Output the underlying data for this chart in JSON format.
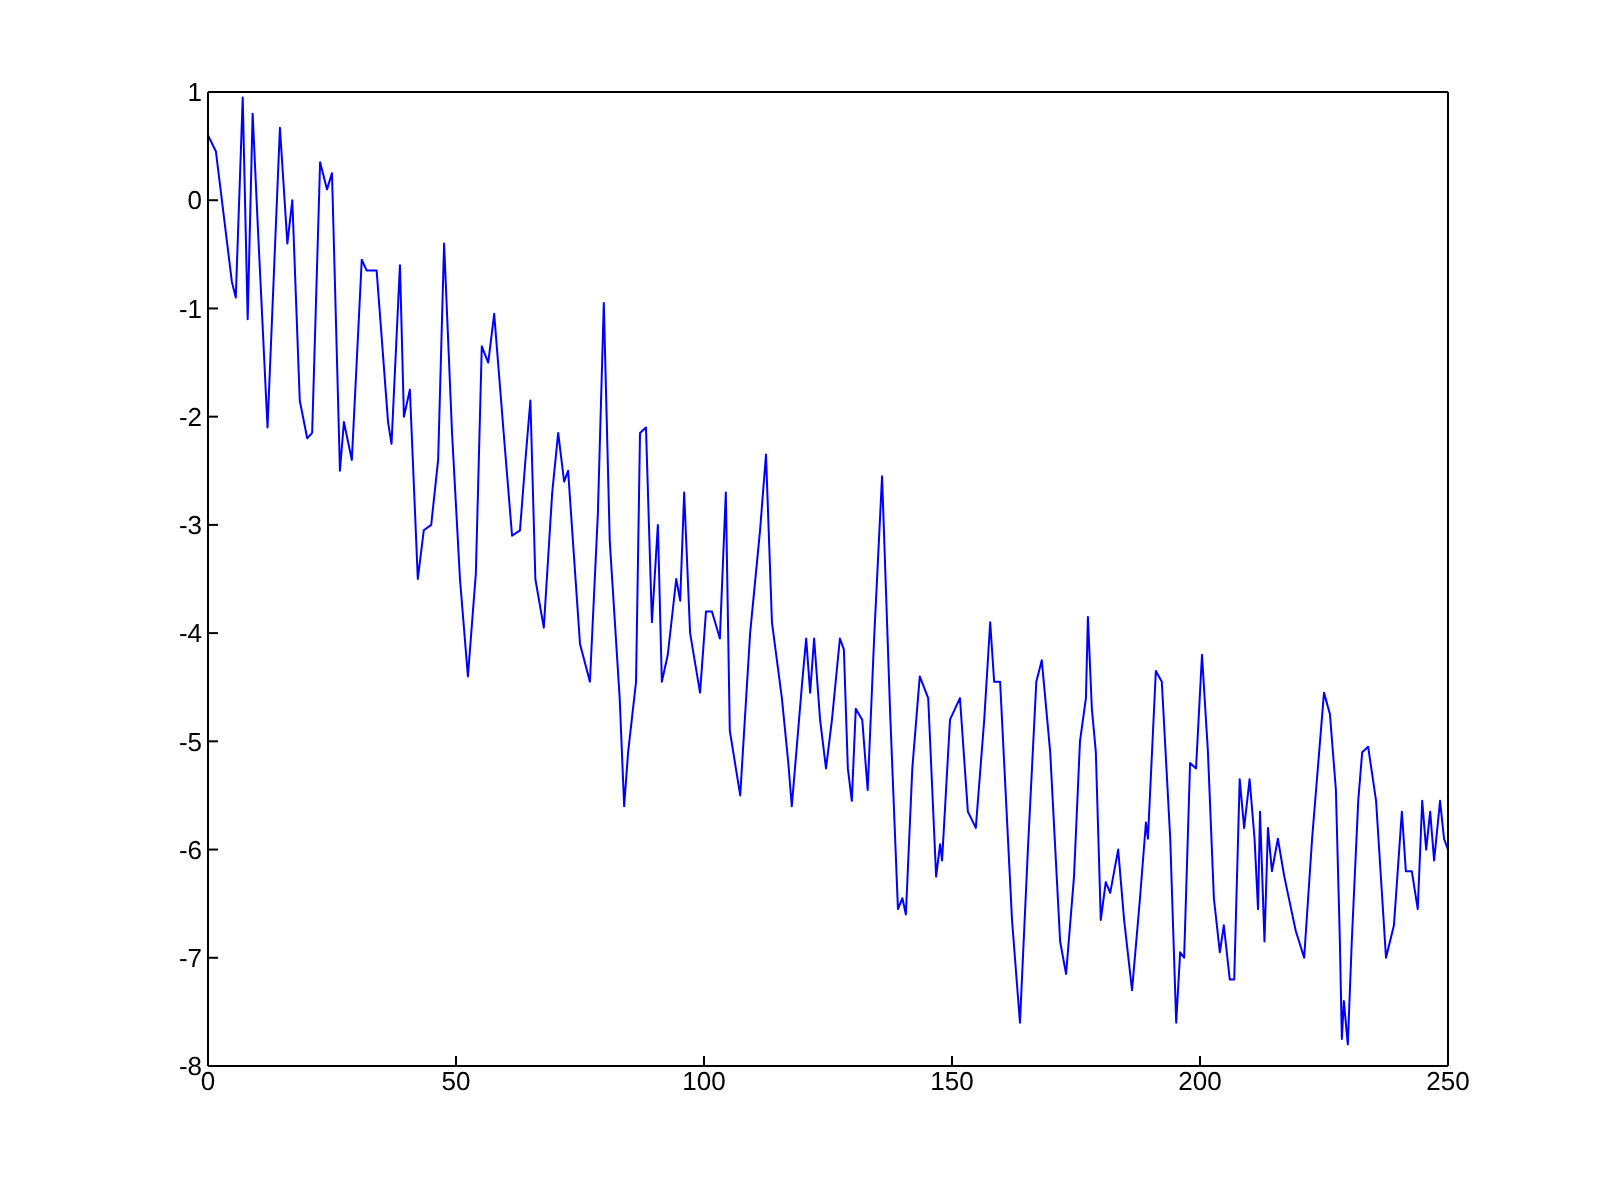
{
  "chart_data": {
    "type": "line",
    "x": [
      0,
      1.6,
      4.8,
      5.6,
      7,
      8,
      9,
      10,
      12,
      14.5,
      16,
      17,
      18.5,
      20,
      21,
      22.6,
      24,
      25,
      26.6,
      27.4,
      29,
      31,
      32,
      34,
      36.3,
      37,
      38.7,
      39.5,
      40.7,
      42.3,
      43.5,
      45,
      46.4,
      47.6,
      49.2,
      50.8,
      52.4,
      54,
      55.2,
      56.5,
      57.7,
      59.7,
      61.3,
      62.9,
      64,
      65,
      66,
      67.7,
      69.4,
      70.6,
      71.8,
      72.6,
      75,
      77,
      78.6,
      79.8,
      81,
      83,
      83.9,
      84.7,
      86.3,
      87.1,
      88.3,
      89.5,
      90.7,
      91.5,
      92.7,
      94.4,
      95.2,
      96,
      97.2,
      99.2,
      100.4,
      101.6,
      103.2,
      104.4,
      105.2,
      107.3,
      109.3,
      111.3,
      112.5,
      113.7,
      115.7,
      117,
      117.7,
      119.8,
      120.6,
      121.4,
      122.2,
      123.4,
      124.6,
      125.8,
      127.4,
      128.2,
      129,
      129.8,
      130.6,
      131.9,
      133,
      134.3,
      135.9,
      137.5,
      139.1,
      140,
      140.7,
      142,
      143.5,
      145.2,
      146.8,
      147.6,
      148,
      149.6,
      151.6,
      153.2,
      154.8,
      156.5,
      157.7,
      158.5,
      159.7,
      162.1,
      163.7,
      165.3,
      167,
      168.1,
      169.8,
      171.8,
      173,
      174.6,
      175.8,
      177,
      177.4,
      178.2,
      179,
      180,
      181,
      181.9,
      183.5,
      184.7,
      186.3,
      187.9,
      189.1,
      189.5,
      191.1,
      192.3,
      194,
      195.2,
      196,
      196.8,
      198,
      199.2,
      200.4,
      201.6,
      202.8,
      204,
      204.8,
      206,
      206.9,
      208,
      208.9,
      210,
      211,
      211.7,
      212.1,
      213,
      213.7,
      214.5,
      215.7,
      217,
      219.3,
      221,
      222.6,
      224.2,
      225,
      226.2,
      227.4,
      228.2,
      228.6,
      229,
      229.8,
      230.6,
      231.9,
      232.7,
      233.9,
      235.5,
      237.5,
      239.1,
      240.7,
      241.5,
      242.7,
      243.9,
      244.8,
      245.6,
      246.4,
      247.2,
      248.4,
      249.2,
      250
    ],
    "series": [
      {
        "color": "#0000ff",
        "values": [
          0.6,
          0.45,
          -0.75,
          -0.9,
          0.95,
          -1.1,
          0.8,
          -0.2,
          -2.1,
          0.67,
          -0.4,
          0,
          -1.85,
          -2.2,
          -2.15,
          0.35,
          0.1,
          0.25,
          -2.5,
          -2.05,
          -2.4,
          -0.55,
          -0.65,
          -0.65,
          -2.05,
          -2.25,
          -0.6,
          -2,
          -1.75,
          -3.5,
          -3.05,
          -3,
          -2.4,
          -0.4,
          -2.15,
          -3.5,
          -4.4,
          -3.45,
          -1.35,
          -1.5,
          -1.05,
          -2.2,
          -3.1,
          -3.05,
          -2.4,
          -1.85,
          -3.5,
          -3.95,
          -2.7,
          -2.15,
          -2.6,
          -2.5,
          -4.1,
          -4.45,
          -2.9,
          -0.95,
          -3.15,
          -4.6,
          -5.6,
          -5.1,
          -4.45,
          -2.15,
          -2.1,
          -3.9,
          -3,
          -4.45,
          -4.2,
          -3.5,
          -3.7,
          -2.7,
          -4,
          -4.55,
          -3.8,
          -3.8,
          -4.05,
          -2.7,
          -4.9,
          -5.5,
          -4,
          -3.05,
          -2.35,
          -3.9,
          -4.6,
          -5.2,
          -5.6,
          -4.45,
          -4.05,
          -4.55,
          -4.05,
          -4.8,
          -5.25,
          -4.8,
          -4.05,
          -4.15,
          -5.25,
          -5.55,
          -4.7,
          -4.8,
          -5.45,
          -4.05,
          -2.55,
          -4.7,
          -6.55,
          -6.45,
          -6.6,
          -5.25,
          -4.4,
          -4.6,
          -6.25,
          -5.95,
          -6.1,
          -4.8,
          -4.6,
          -5.65,
          -5.8,
          -4.8,
          -3.9,
          -4.45,
          -4.45,
          -6.65,
          -7.6,
          -6,
          -4.45,
          -4.25,
          -5.1,
          -6.85,
          -7.15,
          -6.25,
          -5,
          -4.6,
          -3.85,
          -4.7,
          -5.1,
          -6.65,
          -6.3,
          -6.4,
          -6,
          -6.65,
          -7.3,
          -6.45,
          -5.75,
          -5.9,
          -4.35,
          -4.45,
          -5.9,
          -7.6,
          -6.95,
          -7,
          -5.2,
          -5.25,
          -4.2,
          -5.1,
          -6.45,
          -6.95,
          -6.7,
          -7.2,
          -7.2,
          -5.35,
          -5.8,
          -5.35,
          -5.9,
          -6.55,
          -5.65,
          -6.85,
          -5.8,
          -6.2,
          -5.9,
          -6.25,
          -6.75,
          -7,
          -5.9,
          -5,
          -4.55,
          -4.75,
          -5.45,
          -6.85,
          -7.75,
          -7.4,
          -7.8,
          -6.85,
          -5.55,
          -5.1,
          -5.05,
          -5.55,
          -7,
          -6.7,
          -5.65,
          -6.2,
          -6.2,
          -6.55,
          -5.55,
          -6,
          -5.65,
          -6.1,
          -5.55,
          -5.9,
          -6
        ]
      }
    ],
    "xlim": [
      0,
      250
    ],
    "xticks": [
      0,
      50,
      100,
      150,
      200,
      250
    ],
    "ylim": [
      -8,
      1
    ],
    "yticks": [
      -8,
      -7,
      -6,
      -5,
      -4,
      -3,
      -2,
      -1,
      0,
      1
    ],
    "grid": false,
    "marker": "none",
    "line_style": "solid"
  }
}
